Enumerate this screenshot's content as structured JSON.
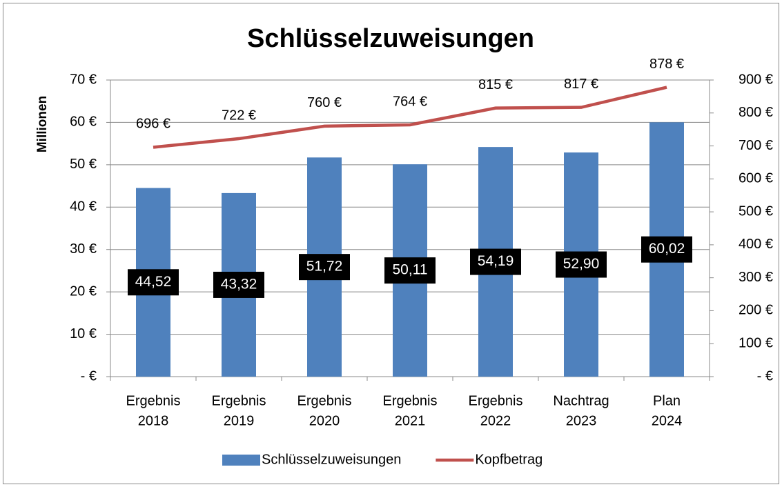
{
  "chart_data": {
    "type": "bar",
    "title": "Schlüsselzuweisungen",
    "ylabel": "Millionen",
    "categories": [
      [
        "Ergebnis",
        "2018"
      ],
      [
        "Ergebnis",
        "2019"
      ],
      [
        "Ergebnis",
        "2020"
      ],
      [
        "Ergebnis",
        "2021"
      ],
      [
        "Ergebnis",
        "2022"
      ],
      [
        "Nachtrag",
        "2023"
      ],
      [
        "Plan",
        "2024"
      ]
    ],
    "series": [
      {
        "name": "Schlüsselzuweisungen",
        "type": "bar",
        "color": "#4f81bd",
        "values": [
          44.52,
          43.32,
          51.72,
          50.11,
          54.19,
          52.9,
          60.02
        ],
        "value_labels": [
          "44,52",
          "43,32",
          "51,72",
          "50,11",
          "54,19",
          "52,90",
          "60,02"
        ]
      },
      {
        "name": "Kopfbetrag",
        "type": "line",
        "axis": "y2",
        "color": "#c0504d",
        "values": [
          696,
          722,
          760,
          764,
          815,
          817,
          878
        ],
        "value_labels": [
          "696 €",
          "722 €",
          "760 €",
          "764 €",
          "815 €",
          "817 €",
          "878 €"
        ]
      }
    ],
    "ylim": [
      0,
      70
    ],
    "yticks": [
      {
        "value": 0,
        "label": "-  €"
      },
      {
        "value": 10,
        "label": "10 €"
      },
      {
        "value": 20,
        "label": "20 €"
      },
      {
        "value": 30,
        "label": "30 €"
      },
      {
        "value": 40,
        "label": "40 €"
      },
      {
        "value": 50,
        "label": "50 €"
      },
      {
        "value": 60,
        "label": "60 €"
      },
      {
        "value": 70,
        "label": "70 €"
      }
    ],
    "y2lim": [
      0,
      900
    ],
    "y2ticks": [
      {
        "value": 0,
        "label": "-  €"
      },
      {
        "value": 100,
        "label": "100 €"
      },
      {
        "value": 200,
        "label": "200 €"
      },
      {
        "value": 300,
        "label": "300 €"
      },
      {
        "value": 400,
        "label": "400 €"
      },
      {
        "value": 500,
        "label": "500 €"
      },
      {
        "value": 600,
        "label": "600 €"
      },
      {
        "value": 700,
        "label": "700 €"
      },
      {
        "value": 800,
        "label": "800 €"
      },
      {
        "value": 900,
        "label": "900 €"
      }
    ],
    "grid": true,
    "legend": "bottom"
  }
}
